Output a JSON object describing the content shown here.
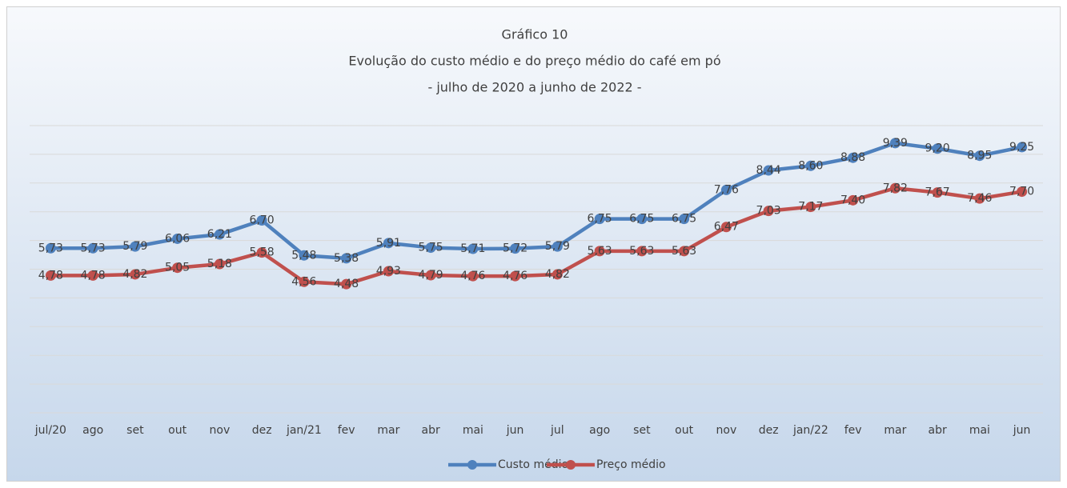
{
  "chart_data": {
    "type": "line",
    "title": [
      "Gráfico 10",
      "Evolução do custo médio e do preço médio do café em pó",
      "- julho de 2020 a junho de 2022 -"
    ],
    "categories": [
      "jul/20",
      "ago",
      "set",
      "out",
      "nov",
      "dez",
      "jan/21",
      "fev",
      "mar",
      "abr",
      "mai",
      "jun",
      "jul",
      "ago",
      "set",
      "out",
      "nov",
      "dez",
      "jan/22",
      "fev",
      "mar",
      "abr",
      "mai",
      "jun"
    ],
    "series": [
      {
        "name": "Custo médio",
        "color": "#4f81bd",
        "values": [
          5.73,
          5.73,
          5.79,
          6.06,
          6.21,
          6.7,
          5.48,
          5.38,
          5.91,
          5.75,
          5.71,
          5.72,
          5.79,
          6.75,
          6.75,
          6.75,
          7.76,
          8.44,
          8.6,
          8.88,
          9.39,
          9.2,
          8.95,
          9.25
        ],
        "value_labels": [
          "5,73",
          "5,73",
          "5,79",
          "6,06",
          "6,21",
          "6,70",
          "5,48",
          "5,38",
          "5,91",
          "5,75",
          "5,71",
          "5,72",
          "5,79",
          "6,75",
          "6,75",
          "6,75",
          "7,76",
          "8,44",
          "8,60",
          "8,88",
          "9,39",
          "9,20",
          "8,95",
          "9,25"
        ]
      },
      {
        "name": "Preço médio",
        "color": "#c0504d",
        "values": [
          4.78,
          4.78,
          4.82,
          5.05,
          5.18,
          5.58,
          4.56,
          4.48,
          4.93,
          4.79,
          4.76,
          4.76,
          4.82,
          5.63,
          5.63,
          5.63,
          6.47,
          7.03,
          7.17,
          7.4,
          7.82,
          7.67,
          7.46,
          7.7
        ],
        "value_labels": [
          "4,78",
          "4,78",
          "4,82",
          "5,05",
          "5,18",
          "5,58",
          "4,56",
          "4,48",
          "4,93",
          "4,79",
          "4,76",
          "4,76",
          "4,82",
          "5,63",
          "5,63",
          "5,63",
          "6,47",
          "7,03",
          "7,17",
          "7,40",
          "7,82",
          "7,67",
          "7,46",
          "7,70"
        ]
      }
    ],
    "ylim": [
      0,
      10
    ],
    "yticks": [
      0,
      1,
      2,
      3,
      4,
      5,
      6,
      7,
      8,
      9,
      10
    ],
    "grid": true,
    "legend": "bottom"
  }
}
